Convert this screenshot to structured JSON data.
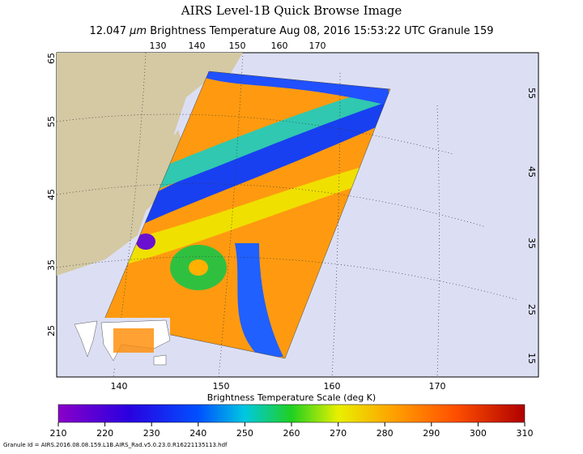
{
  "header": {
    "title": "AIRS Level-1B Quick Browse Image",
    "channel": "12.047",
    "unit": "μm",
    "quantity": "Brightness Temperature",
    "time": "Aug 08, 2016 15:53:22 UTC",
    "granule": "Granule 159"
  },
  "map": {
    "top_lon_labels": [
      "130",
      "140",
      "150",
      "160",
      "170"
    ],
    "bottom_lon_labels": [
      "140",
      "150",
      "160",
      "170"
    ],
    "left_lat_labels": [
      "65",
      "55",
      "45",
      "35",
      "25"
    ],
    "right_lat_labels": [
      "55",
      "45",
      "35",
      "25",
      "15"
    ]
  },
  "colorbar": {
    "title": "Brightness Temperature Scale (deg K)",
    "range": [
      210,
      310
    ],
    "ticks": [
      210,
      220,
      230,
      240,
      250,
      260,
      270,
      280,
      290,
      300,
      310
    ]
  },
  "footer": "Granule Id = AIRS.2016.08.08.159.L1B.AIRS_Rad.v5.0.23.0.R16221135113.hdf"
}
